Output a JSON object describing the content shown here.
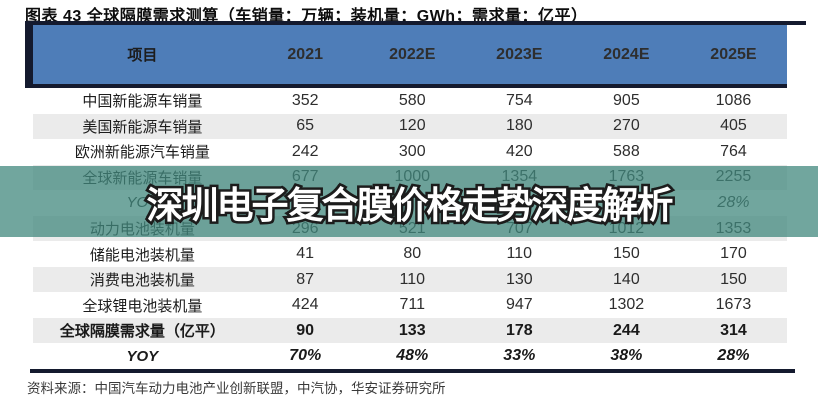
{
  "page": {
    "title": "图表 43 全球隔膜需求测算（车销量：万辆；装机量：GWh；需求量：亿平）",
    "watermark": "深圳电子复合膜价格走势深度解析",
    "source": "资料来源：中国汽车动力电池产业创新联盟，中汽协，华安证券研究所"
  },
  "colors": {
    "header_bg": "#4e7db8",
    "frame_dark": "#141a2e",
    "zebra_gray": "#ebebeb",
    "band_teal": "rgba(66,136,125,0.75)",
    "watermark_fill": "#ffffff",
    "watermark_outline": "#1c1c1c"
  },
  "chart_data": {
    "type": "table",
    "columns": [
      "项目",
      "2021",
      "2022E",
      "2023E",
      "2024E",
      "2025E"
    ],
    "rows": [
      {
        "label": "中国新能源车销量",
        "values": [
          "352",
          "580",
          "754",
          "905",
          "1086"
        ],
        "style": "normal"
      },
      {
        "label": "美国新能源车销量",
        "values": [
          "65",
          "120",
          "180",
          "270",
          "405"
        ],
        "style": "normal"
      },
      {
        "label": "欧洲新能源汽车销量",
        "values": [
          "242",
          "300",
          "420",
          "588",
          "764"
        ],
        "style": "normal"
      },
      {
        "label": "全球新能源车销量",
        "values": [
          "677",
          "1000",
          "1354",
          "1763",
          "2255"
        ],
        "style": "normal"
      },
      {
        "label": "YOY",
        "values": [
          "",
          "",
          "",
          "",
          "28%"
        ],
        "style": "yoy"
      },
      {
        "label": "动力电池装机量",
        "values": [
          "296",
          "521",
          "707",
          "1012",
          "1353"
        ],
        "style": "normal"
      },
      {
        "label": "储能电池装机量",
        "values": [
          "41",
          "80",
          "110",
          "150",
          "170"
        ],
        "style": "normal"
      },
      {
        "label": "消费电池装机量",
        "values": [
          "87",
          "110",
          "130",
          "140",
          "150"
        ],
        "style": "normal"
      },
      {
        "label": "全球锂电池装机量",
        "values": [
          "424",
          "711",
          "947",
          "1302",
          "1673"
        ],
        "style": "normal"
      },
      {
        "label": "全球隔膜需求量（亿平）",
        "values": [
          "90",
          "133",
          "178",
          "244",
          "314"
        ],
        "style": "bold"
      },
      {
        "label": "YOY",
        "values": [
          "70%",
          "48%",
          "33%",
          "38%",
          "28%"
        ],
        "style": "bold-yoy"
      }
    ]
  }
}
